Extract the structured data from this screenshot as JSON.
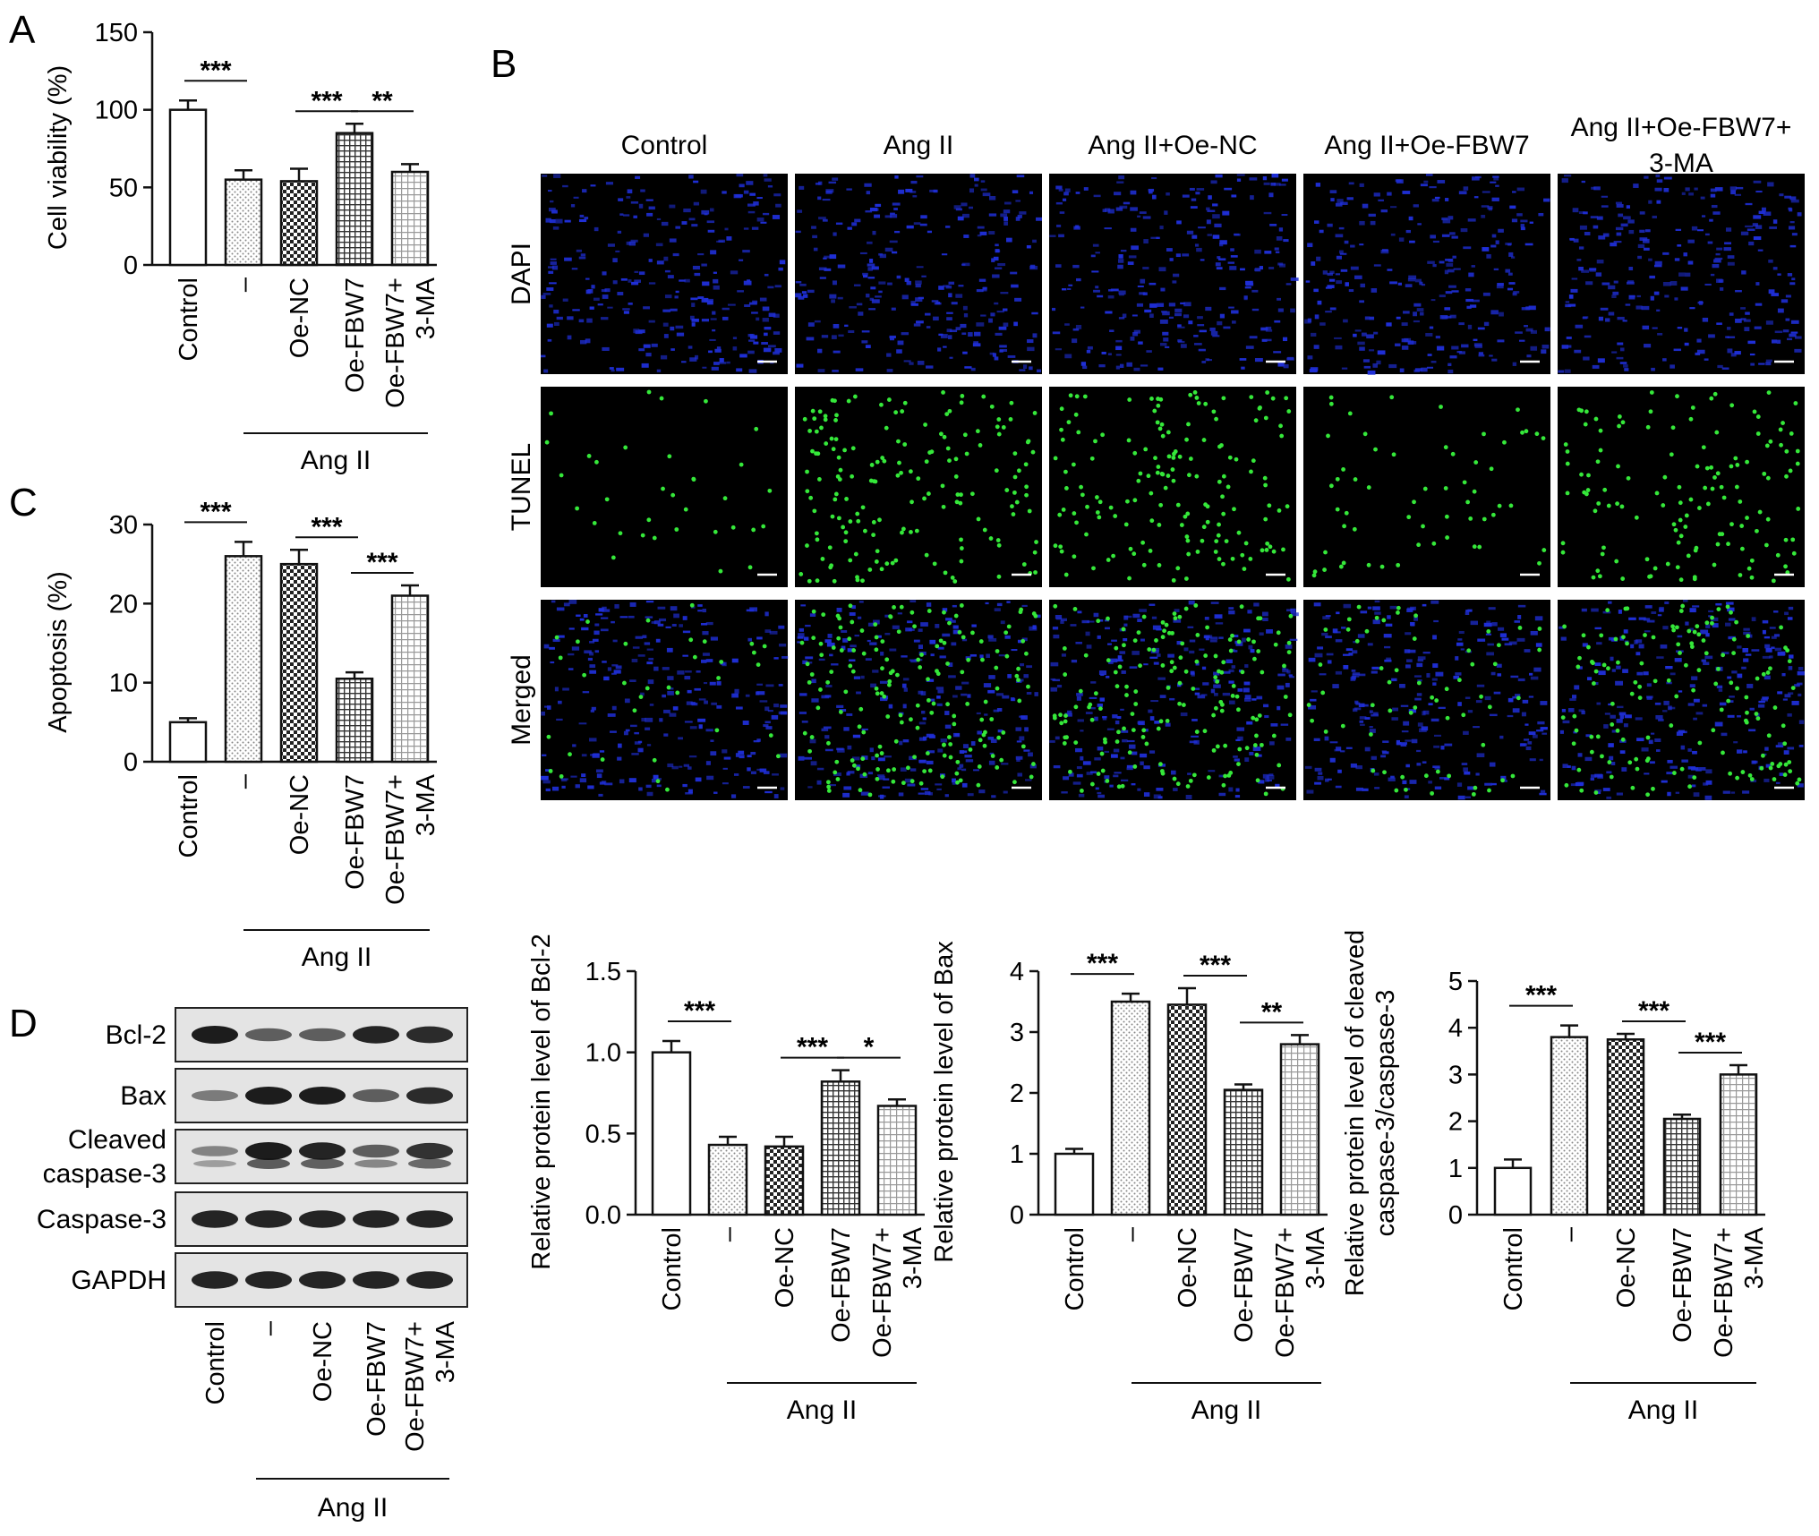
{
  "panel_letters": [
    "A",
    "B",
    "C",
    "D"
  ],
  "group_label": "Ang II",
  "x_labels": [
    "Control",
    "–",
    "Oe-NC",
    "Oe-FBW7",
    "Oe-FBW7+\n3-MA"
  ],
  "chart_data": [
    {
      "id": "A",
      "type": "bar",
      "ylabel": "Cell viability (%)",
      "categories": [
        "Control",
        "–",
        "Oe-NC",
        "Oe-FBW7",
        "Oe-FBW7+\n3-MA"
      ],
      "values": [
        100,
        55,
        54,
        85,
        60
      ],
      "errors": [
        6,
        6,
        8,
        6,
        5
      ],
      "ylim": [
        0,
        150
      ],
      "yticks": [
        "0",
        "50",
        "100",
        "150"
      ],
      "sig": [
        {
          "from": 0,
          "to": 1,
          "label": "***"
        },
        {
          "from": 2,
          "to": 3,
          "label": "***"
        },
        {
          "from": 3,
          "to": 4,
          "label": "**"
        }
      ]
    },
    {
      "id": "C",
      "type": "bar",
      "ylabel": "Apoptosis (%)",
      "categories": [
        "Control",
        "–",
        "Oe-NC",
        "Oe-FBW7",
        "Oe-FBW7+\n3-MA"
      ],
      "values": [
        5,
        26,
        25,
        10.5,
        21
      ],
      "errors": [
        0.5,
        1.8,
        1.8,
        0.8,
        1.3
      ],
      "ylim": [
        0,
        30
      ],
      "yticks": [
        "0",
        "10",
        "20",
        "30"
      ],
      "sig": [
        {
          "from": 0,
          "to": 1,
          "label": "***"
        },
        {
          "from": 2,
          "to": 3,
          "label": "***"
        },
        {
          "from": 3,
          "to": 4,
          "label": "***"
        }
      ]
    },
    {
      "id": "D1",
      "type": "bar",
      "ylabel": "Relative protein level of Bcl-2",
      "categories": [
        "Control",
        "–",
        "Oe-NC",
        "Oe-FBW7",
        "Oe-FBW7+\n3-MA"
      ],
      "values": [
        1.0,
        0.43,
        0.42,
        0.82,
        0.67
      ],
      "errors": [
        0.07,
        0.05,
        0.06,
        0.07,
        0.04
      ],
      "ylim": [
        0,
        1.5
      ],
      "yticks": [
        "0.0",
        "0.5",
        "1.0",
        "1.5"
      ],
      "sig": [
        {
          "from": 0,
          "to": 1,
          "label": "***"
        },
        {
          "from": 2,
          "to": 3,
          "label": "***"
        },
        {
          "from": 3,
          "to": 4,
          "label": "*"
        }
      ]
    },
    {
      "id": "D2",
      "type": "bar",
      "ylabel": "Relative protein level of Bax",
      "categories": [
        "Control",
        "–",
        "Oe-NC",
        "Oe-FBW7",
        "Oe-FBW7+\n3-MA"
      ],
      "values": [
        1.0,
        3.5,
        3.45,
        2.05,
        2.8
      ],
      "errors": [
        0.08,
        0.13,
        0.27,
        0.09,
        0.15
      ],
      "ylim": [
        0,
        4
      ],
      "yticks": [
        "0",
        "1",
        "2",
        "3",
        "4"
      ],
      "sig": [
        {
          "from": 0,
          "to": 1,
          "label": "***"
        },
        {
          "from": 2,
          "to": 3,
          "label": "***"
        },
        {
          "from": 3,
          "to": 4,
          "label": "**"
        }
      ]
    },
    {
      "id": "D3",
      "type": "bar",
      "ylabel": "Relative protein level of cleaved\ncaspase-3/caspase-3",
      "categories": [
        "Control",
        "–",
        "Oe-NC",
        "Oe-FBW7",
        "Oe-FBW7+\n3-MA"
      ],
      "values": [
        1.0,
        3.8,
        3.75,
        2.05,
        3.0
      ],
      "errors": [
        0.18,
        0.25,
        0.12,
        0.09,
        0.2
      ],
      "ylim": [
        0,
        5
      ],
      "yticks": [
        "0",
        "1",
        "2",
        "3",
        "4",
        "5"
      ],
      "sig": [
        {
          "from": 0,
          "to": 1,
          "label": "***"
        },
        {
          "from": 2,
          "to": 3,
          "label": "***"
        },
        {
          "from": 3,
          "to": 4,
          "label": "***"
        }
      ]
    }
  ],
  "microscopy": {
    "columns": [
      "Control",
      "Ang II",
      "Ang II+Oe-NC",
      "Ang II+Oe-FBW7",
      "Ang II+Oe-FBW7+\n3-MA"
    ],
    "rows": [
      "DAPI",
      "TUNEL",
      "Merged"
    ],
    "tunel_density": [
      0.2,
      1.0,
      0.95,
      0.35,
      0.8
    ],
    "colors": {
      "background": "#000000",
      "dapi": "#1f2fd8",
      "tunel": "#35e83a"
    }
  },
  "western_blot": {
    "labels": [
      "Bcl-2",
      "Bax",
      "Cleaved\ncaspase-3",
      "Caspase-3",
      "GAPDH"
    ],
    "intensity": [
      [
        1.0,
        0.55,
        0.55,
        0.95,
        0.9
      ],
      [
        0.35,
        1.0,
        1.0,
        0.55,
        0.9
      ],
      [
        0.3,
        1.0,
        0.95,
        0.55,
        0.85
      ],
      [
        0.95,
        0.95,
        0.95,
        0.95,
        0.95
      ],
      [
        0.95,
        0.95,
        0.95,
        0.95,
        0.95
      ]
    ]
  },
  "colors": {
    "bar_outline": "#111111",
    "axis": "#111111"
  }
}
